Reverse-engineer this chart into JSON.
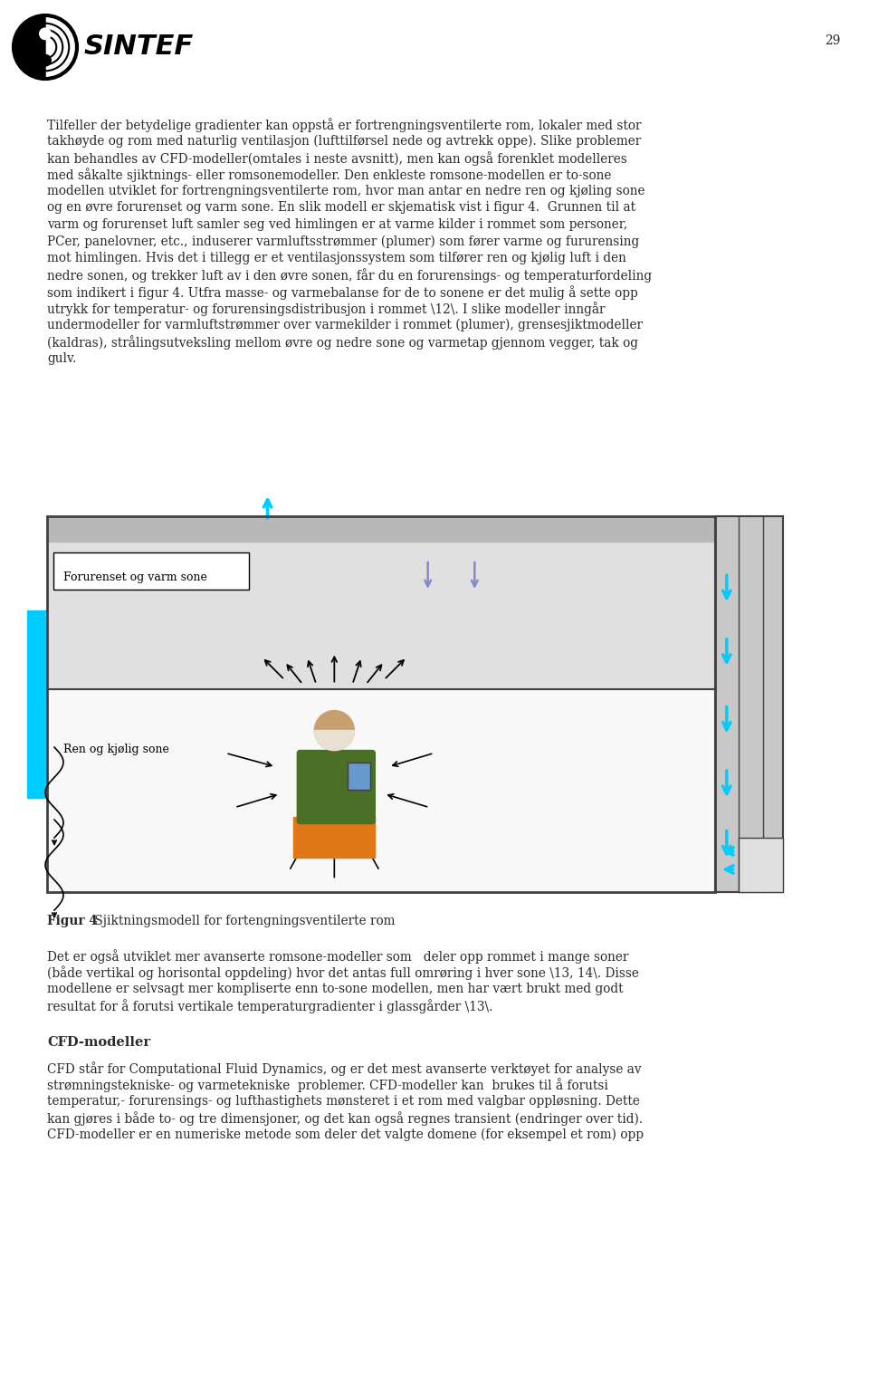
{
  "page_number": "29",
  "bg_color": "#ffffff",
  "text_color": "#2a2a2a",
  "font_size_body": 9.8,
  "font_size_caption": 9.8,
  "font_size_heading": 10.5,
  "paragraph1_lines": [
    "Tilfeller der betydelige gradienter kan oppstå er fortrengningsventilerte rom, lokaler med stor",
    "takhøyde og rom med naturlig ventilasjon (lufttilførsel nede og avtrekk oppe). Slike problemer",
    "kan behandles av CFD-modeller(omtales i neste avsnitt), men kan også forenklet modelleres",
    "med såkalte sjiktnings- eller romsonemodeller. Den enkleste romsone-modellen er to-sone",
    "modellen utviklet for fortrengningsventilerte rom, hvor man antar en nedre ren og kjøling sone",
    "og en øvre forurenset og varm sone. En slik modell er skjematisk vist i figur 4.  Grunnen til at",
    "varm og forurenset luft samler seg ved himlingen er at varme kilder i rommet som personer,",
    "PCer, panelovner, etc., induserer varmluftsstrømmer (plumer) som fører varme og fururensing",
    "mot himlingen. Hvis det i tillegg er et ventilasjonssystem som tilfører ren og kjølig luft i den",
    "nedre sonen, og trekker luft av i den øvre sonen, får du en forurensings- og temperaturfordeling",
    "som indikert i figur 4. Utfra masse- og varmebalanse for de to sonene er det mulig å sette opp",
    "utrykk for temperatur- og forurensingsdistribusjon i rommet \\12\\. I slike modeller inngår",
    "undermodeller for varmluftstrømmer over varmekilder i rommet (plumer), grensesjiktmodeller",
    "(kaldras), strålingsutveksling mellom øvre og nedre sone og varmetap gjennom vegger, tak og",
    "gulv."
  ],
  "figure_caption_bold": "Figur 4",
  "figure_caption_rest": " Sjiktningsmodell for fortengningsventilerte rom",
  "paragraph2_lines": [
    "Det er også utviklet mer avanserte romsone-modeller som   deler opp rommet i mange soner",
    "(både vertikal og horisontal oppdeling) hvor det antas full omrøring i hver sone \\13, 14\\. Disse",
    "modellene er selvsagt mer kompliserte enn to-sone modellen, men har vært brukt med godt",
    "resultat for å forutsi vertikale temperaturgradienter i glassgårder \\13\\."
  ],
  "heading_cfd": "CFD-modeller",
  "paragraph3_lines": [
    "CFD står for Computational Fluid Dynamics, og er det mest avanserte verktøyet for analyse av",
    "strømningstekniske- og varmetekniske  problemer. CFD-modeller kan  brukes til å forutsi",
    "temperatur,- forurensings- og lufthastighets mønsteret i et rom med valgbar oppløsning. Dette",
    "kan gjøres i både to- og tre dimensjoner, og det kan også regnes transient (endringer over tid).",
    "CFD-modeller er en numeriske metode som deler det valgte domene (for eksempel et rom) opp"
  ]
}
